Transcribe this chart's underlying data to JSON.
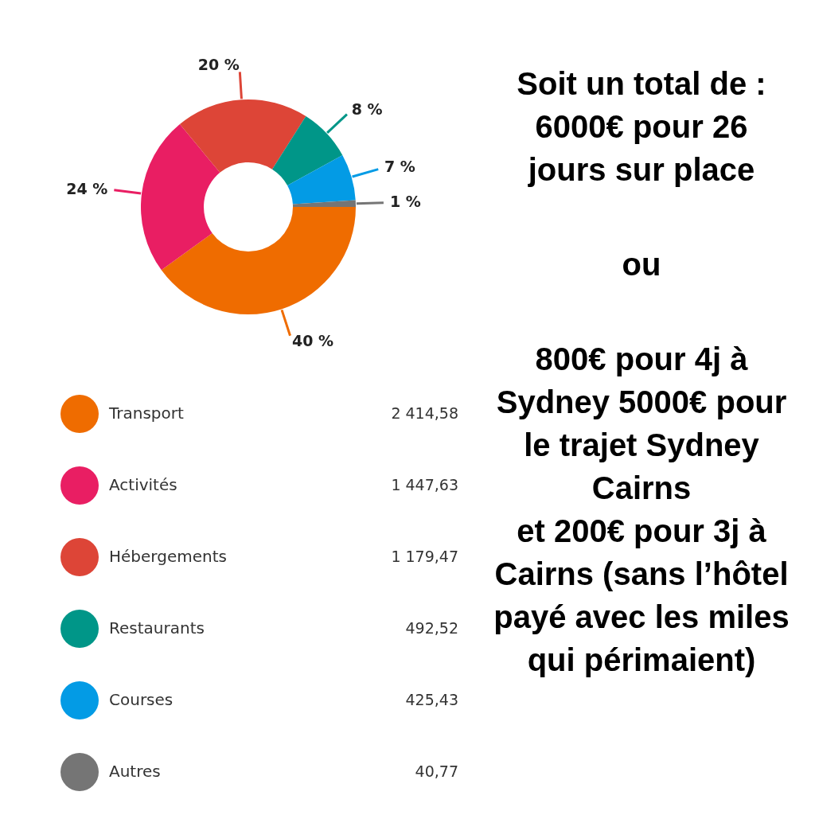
{
  "chart_data": {
    "type": "donut",
    "categories": [
      "Transport",
      "Activités",
      "Hébergements",
      "Restaurants",
      "Courses",
      "Autres"
    ],
    "values": [
      40,
      24,
      20,
      8,
      7,
      1
    ],
    "colors": [
      "#ef6c00",
      "#e91e63",
      "#dd4537",
      "#009688",
      "#039be5",
      "#757575"
    ],
    "value_labels": [
      "40 %",
      "24 %",
      "20 %",
      "8 %",
      "7 %",
      "1 %"
    ],
    "legend": "bottom",
    "annotations": [
      {
        "text": "2 414,58",
        "x": "Transport"
      },
      {
        "text": "1 447,63",
        "x": "Activités"
      },
      {
        "text": "1 179,47",
        "x": "Hébergements"
      },
      {
        "text": "492,52",
        "x": "Restaurants"
      },
      {
        "text": "425,43",
        "x": "Courses"
      },
      {
        "text": "40,77",
        "x": "Autres"
      },
      "Soit un total de :\n6000€ pour 26\njours sur place",
      "ou",
      "800€ pour 4j à\nSydney 5000€ pour\nle trajet Sydney\nCairns\net 200€ pour 3j à\nCairns (sans l’hôtel\npayé avec les miles\nqui périmaient)"
    ]
  }
}
